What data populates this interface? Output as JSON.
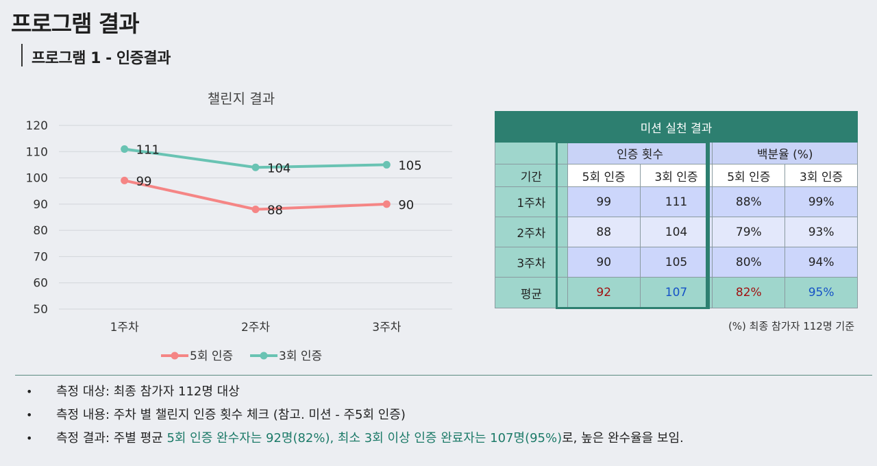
{
  "page": {
    "title": "프로그램 결과",
    "section_title": "프로그램 1 - 인증결과"
  },
  "chart_data": {
    "type": "line",
    "title": "챌린지 결과",
    "categories": [
      "1주차",
      "2주차",
      "3주차"
    ],
    "series": [
      {
        "name": "5회 인증",
        "values": [
          99,
          88,
          90
        ],
        "color": "#f58585"
      },
      {
        "name": "3회 인증",
        "values": [
          111,
          104,
          105
        ],
        "color": "#69c3b3"
      }
    ],
    "ylim": [
      50,
      120
    ],
    "yticks": [
      50,
      60,
      70,
      80,
      90,
      100,
      110,
      120
    ],
    "grid": true,
    "legend": "bottom",
    "data_labels": true
  },
  "table": {
    "caption": "미션 실천 결과",
    "group_count": "인증 횟수",
    "group_percent": "백분율 (%)",
    "col_period": "기간",
    "col_5": "5회 인증",
    "col_3": "3회 인증",
    "col_5p": "5회 인증",
    "col_3p": "3회 인증",
    "rows": [
      {
        "period": "1주차",
        "c5": "99",
        "c3": "111",
        "p5": "88%",
        "p3": "99%"
      },
      {
        "period": "2주차",
        "c5": "88",
        "c3": "104",
        "p5": "79%",
        "p3": "93%"
      },
      {
        "period": "3주차",
        "c5": "90",
        "c3": "105",
        "p5": "80%",
        "p3": "94%"
      }
    ],
    "avg": {
      "period": "평균",
      "c5": "92",
      "c3": "107",
      "p5": "82%",
      "p3": "95%"
    },
    "note": "(%) 최종 참가자  112명 기준"
  },
  "bullets": [
    {
      "label": "측정 대상: 최종 참가자 112명 대상",
      "highlight": "",
      "tail": ""
    },
    {
      "label": "측정 내용: 주차 별 챌린지 인증 횟수 체크 (참고. 미션 - 주5회 인증)",
      "highlight": "",
      "tail": ""
    },
    {
      "label": "측정 결과: 주별 평균 ",
      "highlight": "5회 인증 완수자는 92명(82%), 최소 3회 이상 인증 완료자는 107명(95%)",
      "tail": "로, 높은 완수율을 보임."
    }
  ],
  "bullet_symbol": "•"
}
